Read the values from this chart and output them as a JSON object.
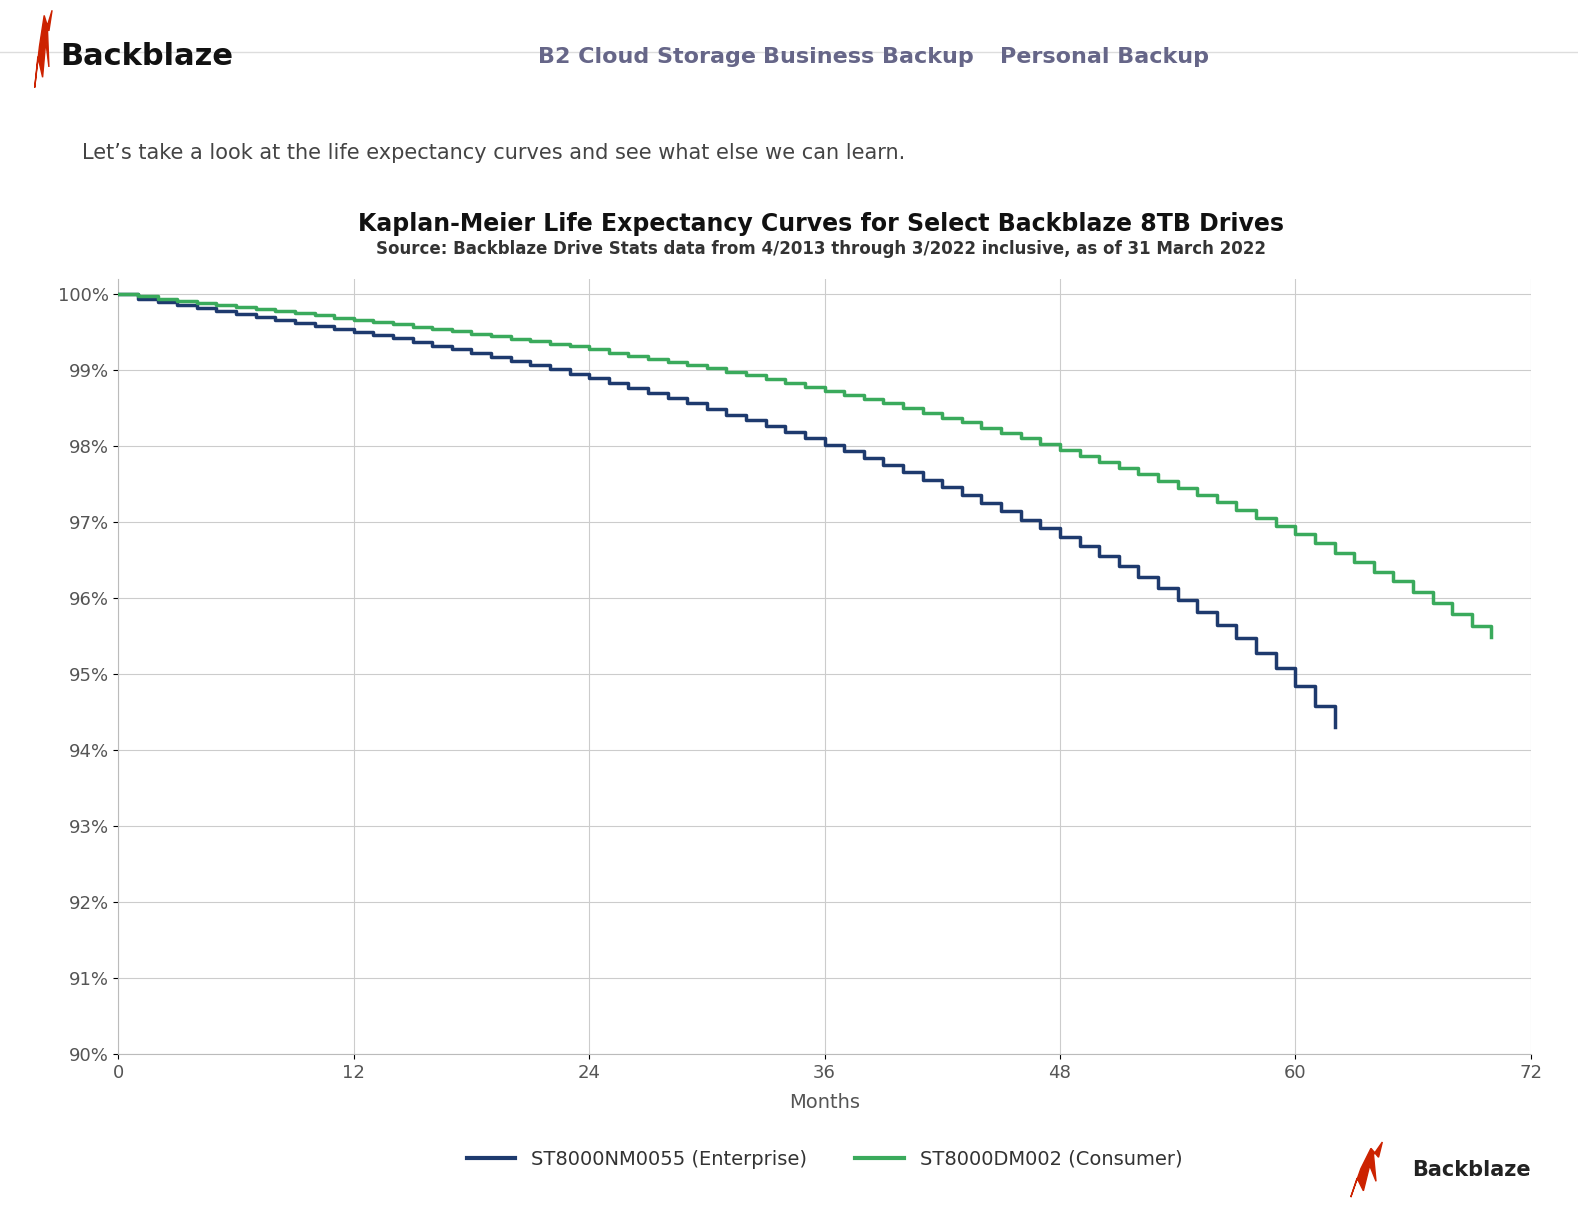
{
  "title": "Kaplan-Meier Life Expectancy Curves for Select Backblaze 8TB Drives",
  "subtitle": "Source: Backblaze Drive Stats data from 4/2013 through 3/2022 inclusive, as of 31 March 2022",
  "xlabel": "Months",
  "xlim": [
    0,
    72
  ],
  "ylim": [
    0.9,
    1.002
  ],
  "xticks": [
    0,
    12,
    24,
    36,
    48,
    60,
    72
  ],
  "yticks": [
    0.9,
    0.91,
    0.92,
    0.93,
    0.94,
    0.95,
    0.96,
    0.97,
    0.98,
    0.99,
    1.0
  ],
  "ytick_labels": [
    "90%",
    "91%",
    "92%",
    "93%",
    "94%",
    "95%",
    "96%",
    "97%",
    "98%",
    "99%",
    "100%"
  ],
  "background_color": "#ffffff",
  "plot_bg_color": "#ffffff",
  "grid_color": "#cccccc",
  "enterprise_color": "#1e3a6e",
  "consumer_color": "#3aaa5c",
  "enterprise_label": "ST8000NM0055 (Enterprise)",
  "consumer_label": "ST8000DM002 (Consumer)",
  "header_text": "Let’s take a look at the life expectancy curves and see what else we can learn.",
  "nav_items": [
    "B2 Cloud Storage",
    "Business Backup",
    "Personal Backup"
  ],
  "backblaze_text": "Backblaze",
  "enterprise_x": [
    0,
    1,
    2,
    3,
    4,
    5,
    6,
    7,
    8,
    9,
    10,
    11,
    12,
    13,
    14,
    15,
    16,
    17,
    18,
    19,
    20,
    21,
    22,
    23,
    24,
    25,
    26,
    27,
    28,
    29,
    30,
    31,
    32,
    33,
    34,
    35,
    36,
    37,
    38,
    39,
    40,
    41,
    42,
    43,
    44,
    45,
    46,
    47,
    48,
    49,
    50,
    51,
    52,
    53,
    54,
    55,
    56,
    57,
    58,
    59,
    60,
    61,
    62
  ],
  "enterprise_y": [
    1.0,
    0.9994,
    0.999,
    0.9986,
    0.9982,
    0.9978,
    0.9974,
    0.997,
    0.9966,
    0.9962,
    0.9958,
    0.9954,
    0.995,
    0.9946,
    0.9942,
    0.9937,
    0.9932,
    0.9927,
    0.9922,
    0.9917,
    0.9912,
    0.9906,
    0.9901,
    0.9895,
    0.9889,
    0.9883,
    0.9877,
    0.987,
    0.9863,
    0.9856,
    0.9849,
    0.9841,
    0.9834,
    0.9826,
    0.9818,
    0.981,
    0.9802,
    0.9793,
    0.9784,
    0.9775,
    0.9766,
    0.9756,
    0.9746,
    0.9736,
    0.9725,
    0.9714,
    0.9703,
    0.9692,
    0.968,
    0.9668,
    0.9655,
    0.9642,
    0.9628,
    0.9613,
    0.9598,
    0.9582,
    0.9565,
    0.9547,
    0.9528,
    0.9508,
    0.9485,
    0.9458,
    0.943
  ],
  "consumer_x": [
    0,
    1,
    2,
    3,
    4,
    5,
    6,
    7,
    8,
    9,
    10,
    11,
    12,
    13,
    14,
    15,
    16,
    17,
    18,
    19,
    20,
    21,
    22,
    23,
    24,
    25,
    26,
    27,
    28,
    29,
    30,
    31,
    32,
    33,
    34,
    35,
    36,
    37,
    38,
    39,
    40,
    41,
    42,
    43,
    44,
    45,
    46,
    47,
    48,
    49,
    50,
    51,
    52,
    53,
    54,
    55,
    56,
    57,
    58,
    59,
    60,
    61,
    62,
    63,
    64,
    65,
    66,
    67,
    68,
    69,
    70
  ],
  "consumer_y": [
    1.0,
    0.9997,
    0.9994,
    0.9991,
    0.9988,
    0.9985,
    0.9983,
    0.998,
    0.9977,
    0.9975,
    0.9972,
    0.9969,
    0.9966,
    0.9963,
    0.996,
    0.9957,
    0.9954,
    0.9951,
    0.9948,
    0.9945,
    0.9941,
    0.9938,
    0.9934,
    0.9931,
    0.9927,
    0.9923,
    0.9919,
    0.9915,
    0.9911,
    0.9907,
    0.9902,
    0.9898,
    0.9893,
    0.9888,
    0.9883,
    0.9878,
    0.9873,
    0.9867,
    0.9862,
    0.9856,
    0.985,
    0.9844,
    0.9837,
    0.9831,
    0.9824,
    0.9817,
    0.981,
    0.9803,
    0.9795,
    0.9787,
    0.9779,
    0.9771,
    0.9763,
    0.9754,
    0.9745,
    0.9736,
    0.9726,
    0.9716,
    0.9706,
    0.9695,
    0.9684,
    0.9672,
    0.966,
    0.9648,
    0.9635,
    0.9622,
    0.9608,
    0.9594,
    0.9579,
    0.9564,
    0.9549
  ]
}
